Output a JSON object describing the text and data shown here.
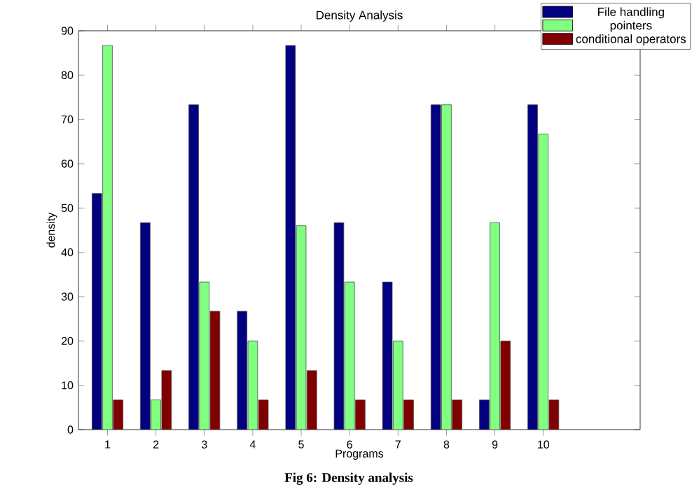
{
  "chart_data": {
    "type": "bar",
    "title": "Density Analysis",
    "xlabel": "Programs",
    "ylabel": "density",
    "x": [
      1,
      2,
      3,
      4,
      5,
      6,
      7,
      8,
      9,
      10
    ],
    "series": [
      {
        "name": "File handling",
        "color": "#000080",
        "values": [
          53.3,
          46.7,
          73.3,
          26.7,
          86.7,
          46.7,
          33.3,
          73.3,
          6.7,
          73.3
        ]
      },
      {
        "name": "pointers",
        "color": "#80ff80",
        "values": [
          86.7,
          6.7,
          33.3,
          20,
          46,
          33.3,
          20,
          73.3,
          46.7,
          66.7
        ]
      },
      {
        "name": "conditional operators",
        "color": "#800000",
        "values": [
          6.7,
          13.3,
          26.7,
          6.7,
          13.3,
          6.7,
          6.7,
          6.7,
          20,
          6.7
        ]
      }
    ],
    "xlim": [
      0.4,
      12
    ],
    "ylim": [
      0,
      90
    ],
    "xticks": [
      1,
      2,
      3,
      4,
      5,
      6,
      7,
      8,
      9,
      10
    ],
    "yticks": [
      0,
      10,
      20,
      30,
      40,
      50,
      60,
      70,
      80,
      90
    ],
    "legend": "top right",
    "grid": false,
    "annotations": [
      "Fig 6: Density analysis"
    ]
  }
}
